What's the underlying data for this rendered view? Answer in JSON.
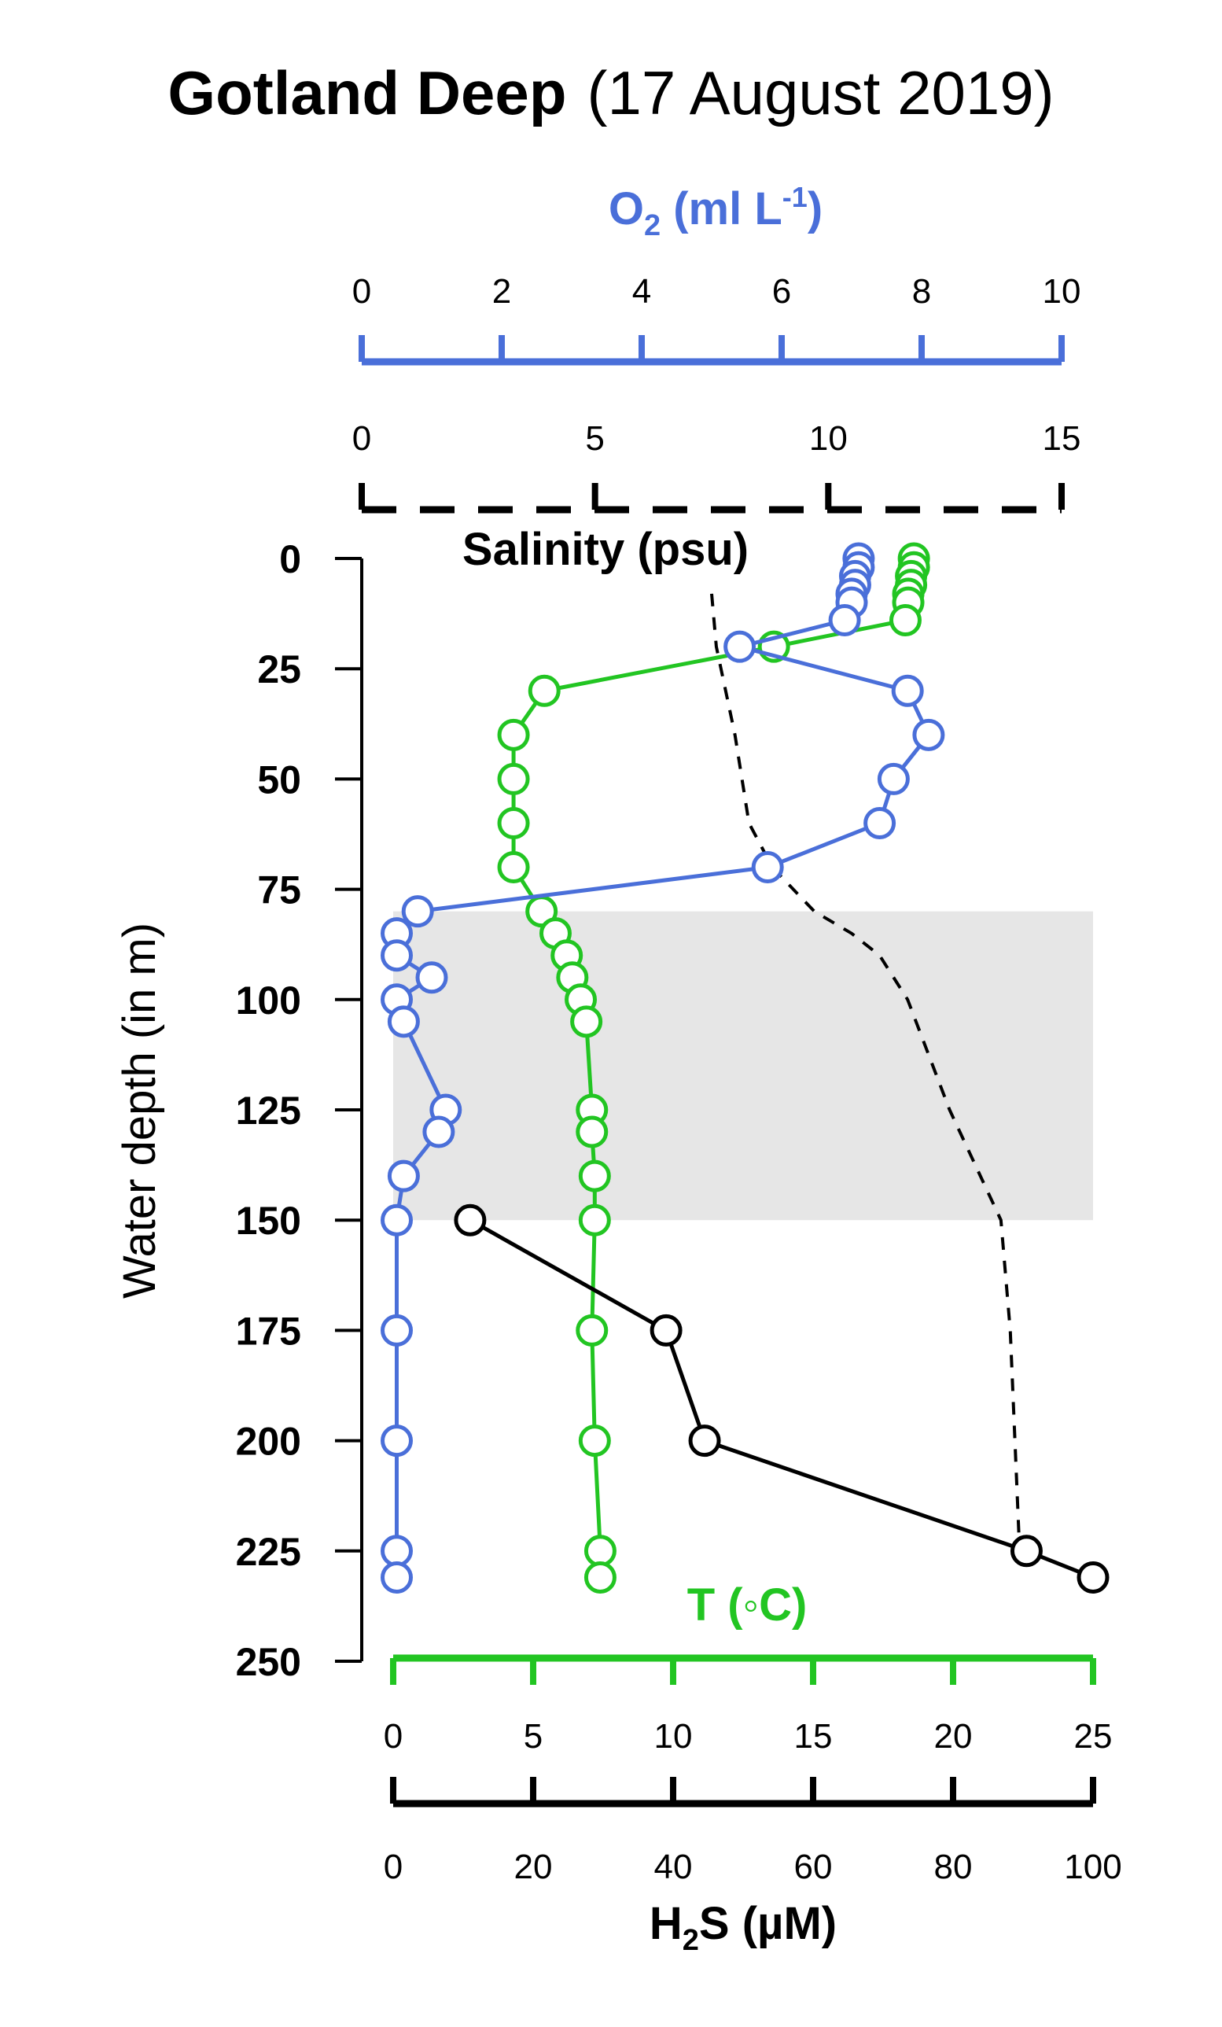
{
  "title": {
    "bold": "Gotland Deep",
    "rest": "(17 August 2019)"
  },
  "colors": {
    "o2": "#4a6fd9",
    "temperature": "#22c522",
    "h2s": "#000000",
    "salinity": "#000000",
    "shade": "#e6e6e6"
  },
  "chart_data": {
    "type": "line",
    "y_axis": {
      "label": "Water depth (in m)",
      "lim": [
        0,
        250
      ],
      "ticks": [
        "0",
        "25",
        "50",
        "75",
        "100",
        "125",
        "150",
        "175",
        "200",
        "225",
        "250"
      ],
      "inverted": true
    },
    "axes": {
      "o2": {
        "label_main": "O",
        "label_sub": "2",
        "label_unit": " (ml L",
        "label_sup": "-1",
        "label_close": ")",
        "lim": [
          0,
          10
        ],
        "ticks": [
          "0",
          "2",
          "4",
          "6",
          "8",
          "10"
        ],
        "position": "top"
      },
      "salinity": {
        "label": "Salinity  (psu)",
        "lim": [
          0,
          15
        ],
        "ticks": [
          "0",
          "5",
          "10",
          "15"
        ],
        "position": "top",
        "style": "dashed"
      },
      "temperature": {
        "label": "T (◦C)",
        "lim": [
          0,
          25
        ],
        "ticks": [
          "0",
          "5",
          "10",
          "15",
          "20",
          "25"
        ],
        "position": "bottom"
      },
      "h2s": {
        "label_main": "H",
        "label_sub": "2",
        "label_rest": "S (µM)",
        "lim": [
          0,
          100
        ],
        "ticks": [
          "0",
          "20",
          "40",
          "60",
          "80",
          "100"
        ],
        "position": "bottom"
      }
    },
    "shaded_depth_range": [
      80,
      150
    ],
    "series": [
      {
        "key": "o2",
        "name": "O2",
        "axis": "o2",
        "markers": true,
        "depth": [
          0,
          2,
          4,
          6,
          8,
          10,
          14,
          20,
          30,
          40,
          50,
          60,
          70,
          80,
          85,
          90,
          95,
          100,
          105,
          125,
          130,
          140,
          150,
          175,
          200,
          225,
          231
        ],
        "values": [
          7.1,
          7.1,
          7.05,
          7.05,
          7.0,
          7.0,
          6.9,
          5.4,
          7.8,
          8.1,
          7.6,
          7.4,
          5.8,
          0.8,
          0.5,
          0.5,
          1.0,
          0.5,
          0.6,
          1.2,
          1.1,
          0.6,
          0.5,
          0.5,
          0.5,
          0.5,
          0.5
        ]
      },
      {
        "key": "temperature",
        "name": "T",
        "axis": "temperature",
        "markers": true,
        "depth": [
          0,
          2,
          4,
          6,
          8,
          10,
          14,
          20,
          30,
          40,
          50,
          60,
          70,
          80,
          85,
          90,
          95,
          100,
          105,
          125,
          130,
          140,
          150,
          175,
          200,
          225,
          231
        ],
        "values": [
          18.6,
          18.6,
          18.5,
          18.5,
          18.4,
          18.4,
          18.3,
          13.6,
          5.4,
          4.3,
          4.3,
          4.3,
          4.3,
          5.3,
          5.8,
          6.2,
          6.4,
          6.7,
          6.9,
          7.1,
          7.1,
          7.2,
          7.2,
          7.1,
          7.2,
          7.4,
          7.4
        ]
      },
      {
        "key": "h2s",
        "name": "H2S",
        "axis": "h2s",
        "markers": true,
        "depth": [
          150,
          175,
          200,
          225,
          231
        ],
        "values": [
          11.0,
          39.0,
          44.5,
          90.5,
          100
        ]
      },
      {
        "key": "salinity",
        "name": "Salinity",
        "axis": "salinity",
        "markers": false,
        "style": "dashed",
        "depth": [
          8,
          20,
          40,
          60,
          70,
          80,
          85,
          90,
          100,
          125,
          150,
          175,
          200,
          225
        ],
        "values": [
          7.5,
          7.6,
          8.0,
          8.3,
          8.8,
          9.7,
          10.5,
          11.1,
          11.7,
          12.6,
          13.7,
          13.9,
          14.0,
          14.1
        ]
      }
    ]
  }
}
